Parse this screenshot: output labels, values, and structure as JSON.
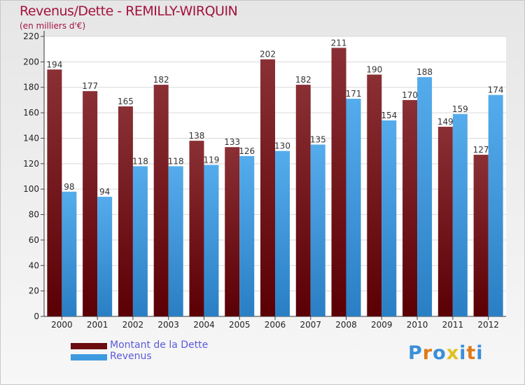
{
  "chart_data": {
    "type": "bar",
    "title": "Revenus/Dette - REMILLY-WIRQUIN",
    "subtitle": "(en milliers d'€)",
    "categories": [
      "2000",
      "2001",
      "2002",
      "2003",
      "2004",
      "2005",
      "2006",
      "2007",
      "2008",
      "2009",
      "2010",
      "2011",
      "2012"
    ],
    "series": [
      {
        "name": "Montant de la Dette",
        "color": "#7a1c1f",
        "values": [
          194,
          177,
          165,
          182,
          138,
          133,
          202,
          182,
          211,
          190,
          170,
          149,
          127
        ]
      },
      {
        "name": "Revenus",
        "color": "#3f9be0",
        "values": [
          98,
          94,
          118,
          118,
          119,
          126,
          130,
          135,
          171,
          154,
          188,
          159,
          174
        ]
      }
    ],
    "ylim": [
      0,
      220
    ],
    "yticks": [
      0,
      20,
      40,
      60,
      80,
      100,
      120,
      140,
      160,
      180,
      200,
      220
    ],
    "grid": true,
    "legend": "bottom-left"
  },
  "legend": {
    "items": [
      {
        "label": "Montant de la Dette",
        "color": "#7a1c1f"
      },
      {
        "label": "Revenus",
        "color": "#3f9be0"
      }
    ]
  },
  "logo": {
    "text": "Proxiti"
  }
}
